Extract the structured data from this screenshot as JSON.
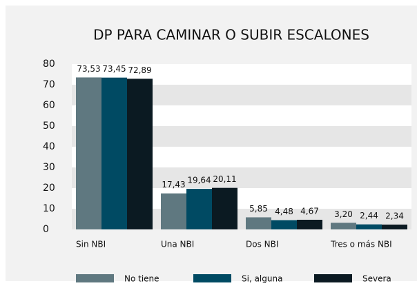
{
  "chart_data": {
    "type": "bar",
    "title": "DP PARA CAMINAR O SUBIR ESCALONES",
    "categories": [
      "Sin NBI",
      "Una NBI",
      "Dos NBI",
      "Tres o más NBI"
    ],
    "series": [
      {
        "name": "No tiene",
        "color": "#5f7880",
        "values": [
          73.53,
          17.43,
          5.85,
          3.2
        ],
        "value_labels": [
          "73,53",
          "17,43",
          "5,85",
          "3,20"
        ]
      },
      {
        "name": "Si, alguna",
        "color": "#004a63",
        "values": [
          73.45,
          19.64,
          4.48,
          2.44
        ],
        "value_labels": [
          "73,45",
          "19,64",
          "4,48",
          "2,44"
        ]
      },
      {
        "name": "Severa",
        "color": "#0b1a22",
        "values": [
          72.89,
          20.11,
          4.67,
          2.34
        ],
        "value_labels": [
          "72,89",
          "20,11",
          "4,67",
          "2,34"
        ]
      }
    ],
    "ylim": [
      0,
      80
    ],
    "yticks": [
      0,
      10,
      20,
      30,
      40,
      50,
      60,
      70,
      80
    ],
    "grid": true,
    "legend": "bottom"
  }
}
